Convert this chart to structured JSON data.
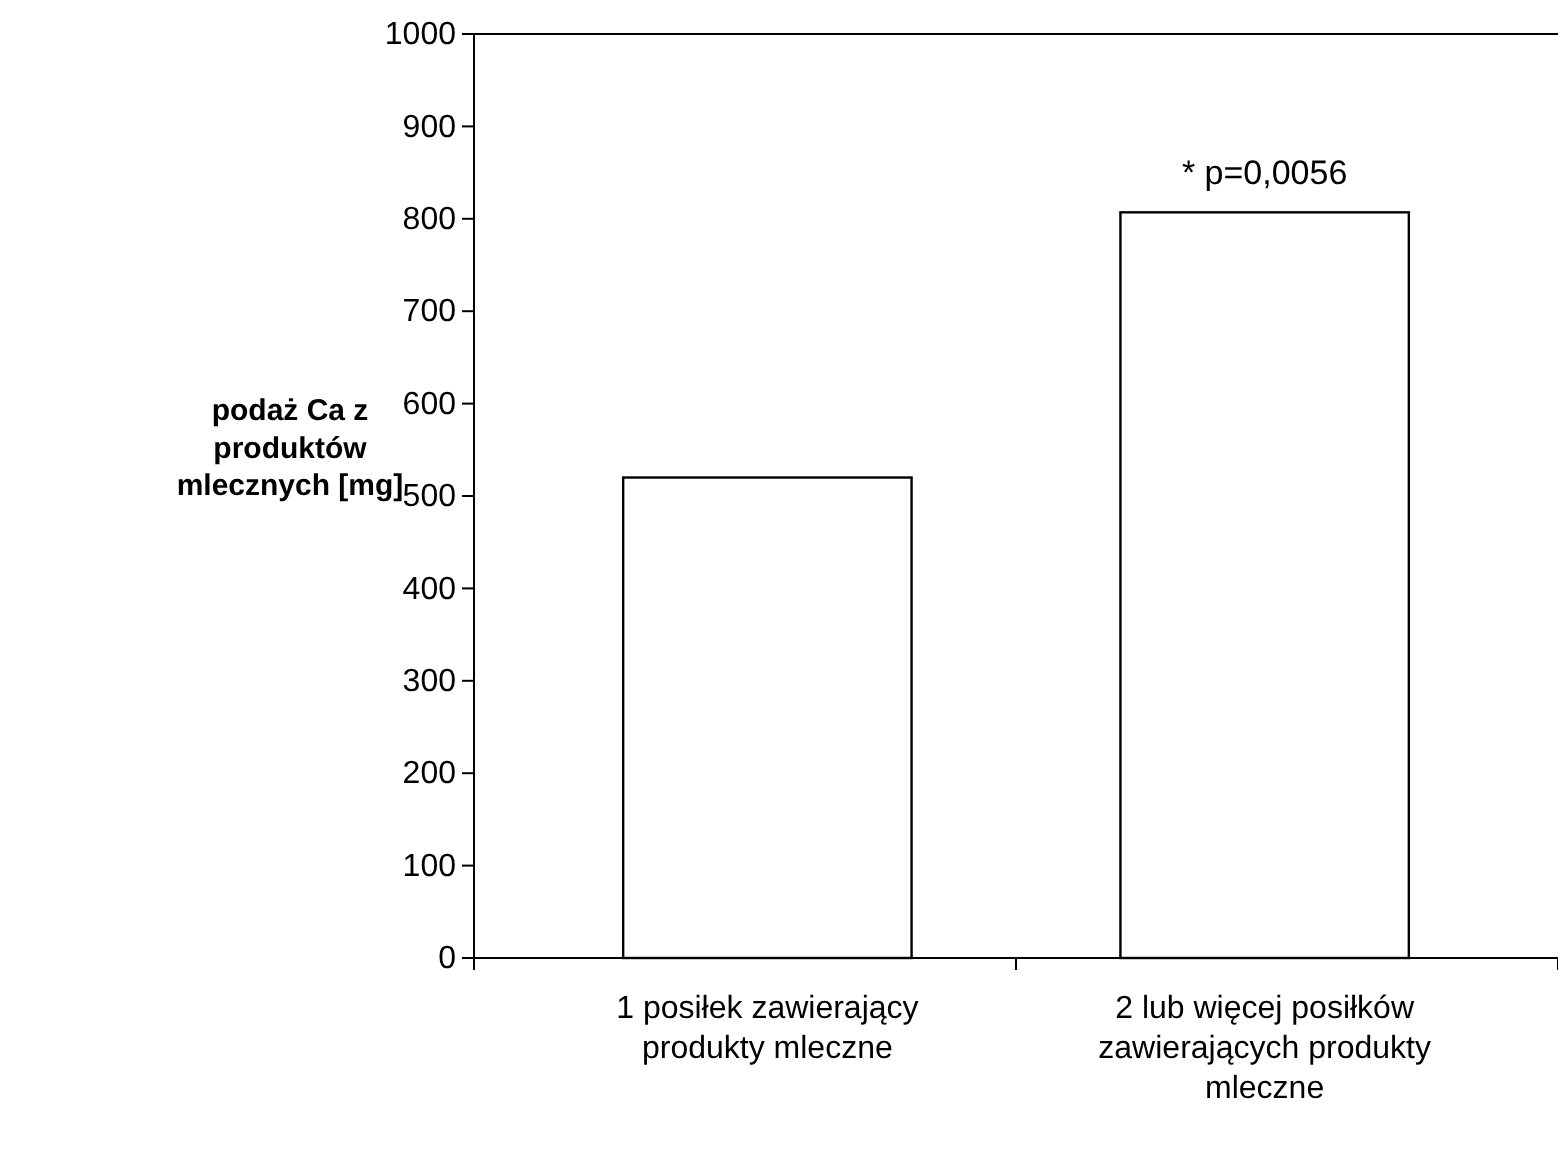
{
  "chart_data": {
    "type": "bar",
    "ylabel": "podaż Ca z produktów mlecznych [mg]",
    "categories": [
      "1 posiłek zawierający produkty mleczne",
      "2 lub więcej posiłków zawierających produkty mleczne"
    ],
    "values": [
      520,
      807
    ],
    "color": "#ffffff",
    "ylim": [
      0,
      1000
    ],
    "yticks": [
      0,
      100,
      200,
      300,
      400,
      500,
      600,
      700,
      800,
      900,
      1000
    ],
    "grid": false,
    "annotations": [
      "* p=0,0056"
    ]
  }
}
